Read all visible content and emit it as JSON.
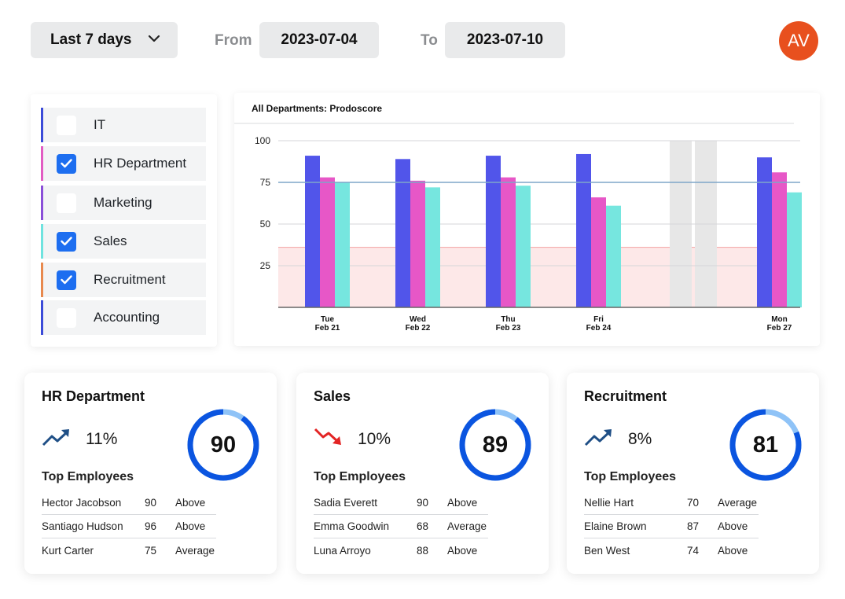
{
  "header": {
    "range_label": "Last 7 days",
    "from_label": "From",
    "from_value": "2023-07-04",
    "to_label": "To",
    "to_value": "2023-07-10",
    "avatar_initials": "AV",
    "avatar_color": "#e8501e"
  },
  "departments": [
    {
      "label": "IT",
      "checked": false,
      "color": "#3b4bd8"
    },
    {
      "label": "HR Department",
      "checked": true,
      "color": "#e25bc2"
    },
    {
      "label": "Marketing",
      "checked": false,
      "color": "#8a4fd8"
    },
    {
      "label": "Sales",
      "checked": true,
      "color": "#6fe3df"
    },
    {
      "label": "Recruitment",
      "checked": true,
      "color": "#e8894e"
    },
    {
      "label": "Accounting",
      "checked": false,
      "color": "#3b4bd8"
    }
  ],
  "chart_data": {
    "type": "bar",
    "title": "All Departments: Prodoscore",
    "categories": [
      "Tue|Feb 21",
      "Wed|Feb 22",
      "Thu|Feb 23",
      "Fri|Feb 24",
      "",
      "Mon|Feb 27"
    ],
    "series": [
      {
        "values": [
          91,
          89,
          91,
          92,
          null,
          90
        ],
        "color": "#5155ea"
      },
      {
        "values": [
          78,
          76,
          78,
          66,
          null,
          81
        ],
        "color": "#e757c7"
      },
      {
        "values": [
          75,
          72,
          73,
          61,
          null,
          69
        ],
        "color": "#76e6df"
      }
    ],
    "yticks": [
      25,
      50,
      75,
      100
    ],
    "ylim": [
      0,
      100
    ],
    "reference_line": 75,
    "low_band_max": 36,
    "weekend_index": 4,
    "grid": true
  },
  "cards": [
    {
      "title": "HR Department",
      "trend": "up",
      "trend_value": "11%",
      "score": "90",
      "score_fraction": 0.9,
      "top_label": "Top Employees",
      "employees": [
        {
          "name": "Hector Jacobson",
          "score": "90",
          "rating": "Above"
        },
        {
          "name": "Santiago Hudson",
          "score": "96",
          "rating": "Above"
        },
        {
          "name": "Kurt Carter",
          "score": "75",
          "rating": "Average"
        }
      ]
    },
    {
      "title": "Sales",
      "trend": "down",
      "trend_value": "10%",
      "score": "89",
      "score_fraction": 0.89,
      "top_label": "Top Employees",
      "employees": [
        {
          "name": "Sadia Everett",
          "score": "90",
          "rating": "Above"
        },
        {
          "name": "Emma Goodwin",
          "score": "68",
          "rating": "Average"
        },
        {
          "name": "Luna Arroyo",
          "score": "88",
          "rating": "Above"
        }
      ]
    },
    {
      "title": "Recruitment",
      "trend": "up",
      "trend_value": "8%",
      "score": "81",
      "score_fraction": 0.81,
      "top_label": "Top Employees",
      "employees": [
        {
          "name": "Nellie Hart",
          "score": "70",
          "rating": "Average"
        },
        {
          "name": "Elaine Brown",
          "score": "87",
          "rating": "Above"
        },
        {
          "name": "Ben West",
          "score": "74",
          "rating": "Above"
        }
      ]
    }
  ],
  "colors": {
    "ring_main": "#0b55e0",
    "ring_remainder": "#8fc3f7",
    "trend_up": "#1f4f86",
    "trend_down": "#e32424"
  }
}
